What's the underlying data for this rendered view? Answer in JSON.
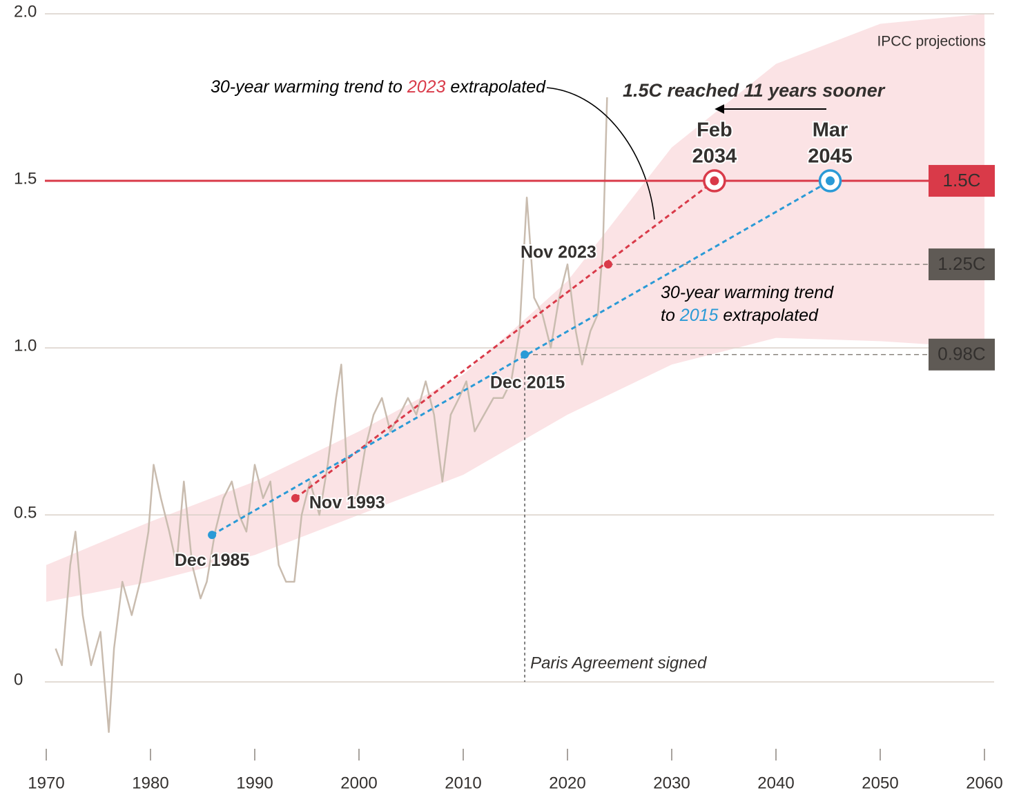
{
  "chart_data": {
    "type": "line",
    "xlim": [
      1970,
      2060
    ],
    "xticks": [
      1970,
      1980,
      1990,
      2000,
      2010,
      2020,
      2030,
      2040,
      2050,
      2060
    ],
    "ylim": [
      -0.2,
      2.0
    ],
    "yticks": [
      0,
      0.5,
      {
        "value": 1,
        "label": "1.0"
      },
      1.5,
      {
        "value": 2,
        "label": "2.0"
      }
    ],
    "grid": true,
    "band": {
      "label": "IPCC projections",
      "color": "#fbe3e5",
      "x": [
        1970,
        1980,
        1990,
        2000,
        2010,
        2020,
        2030,
        2040,
        2050,
        2060
      ],
      "upper": [
        0.35,
        0.48,
        0.6,
        0.75,
        0.92,
        1.2,
        1.6,
        1.85,
        1.97,
        2.0
      ],
      "lower": [
        0.24,
        0.3,
        0.38,
        0.5,
        0.62,
        0.8,
        0.95,
        1.03,
        1.02,
        1.0
      ]
    },
    "series": [
      {
        "color": "#c9bcaf",
        "x": [
          1970.9,
          1971.5,
          1972.3,
          1972.8,
          1973.5,
          1974.3,
          1975.2,
          1976.0,
          1976.5,
          1977.3,
          1978.2,
          1979.0,
          1979.8,
          1980.3,
          1981.0,
          1981.8,
          1982.5,
          1983.2,
          1984.0,
          1984.8,
          1985.4,
          1986.2,
          1987.0,
          1987.8,
          1988.5,
          1989.2,
          1990.0,
          1990.8,
          1991.5,
          1992.3,
          1993.0,
          1993.8,
          1994.5,
          1995.3,
          1996.2,
          1997.0,
          1997.8,
          1998.3,
          1999.0,
          1999.8,
          2000.6,
          2001.4,
          2002.2,
          2003.0,
          2003.9,
          2004.7,
          2005.5,
          2006.4,
          2007.2,
          2008.0,
          2008.8,
          2009.6,
          2010.3,
          2011.1,
          2012.0,
          2012.9,
          2013.8,
          2014.6,
          2015.4,
          2016.1,
          2016.8,
          2017.6,
          2018.4,
          2019.2,
          2020.0,
          2020.8,
          2021.4,
          2022.2,
          2022.9,
          2023.4,
          2023.8
        ],
        "values": [
          0.1,
          0.05,
          0.35,
          0.45,
          0.2,
          0.05,
          0.15,
          -0.15,
          0.1,
          0.3,
          0.2,
          0.3,
          0.45,
          0.65,
          0.55,
          0.45,
          0.35,
          0.6,
          0.35,
          0.25,
          0.3,
          0.45,
          0.55,
          0.6,
          0.5,
          0.45,
          0.65,
          0.55,
          0.6,
          0.35,
          0.3,
          0.3,
          0.5,
          0.6,
          0.5,
          0.65,
          0.85,
          0.95,
          0.55,
          0.55,
          0.7,
          0.8,
          0.85,
          0.75,
          0.8,
          0.85,
          0.8,
          0.9,
          0.8,
          0.6,
          0.8,
          0.85,
          0.9,
          0.75,
          0.8,
          0.85,
          0.85,
          0.9,
          1.05,
          1.45,
          1.15,
          1.1,
          1.0,
          1.15,
          1.25,
          1.05,
          0.95,
          1.05,
          1.1,
          1.3,
          1.75
        ]
      }
    ],
    "trends": [
      {
        "color": "#d93a49",
        "points": [
          {
            "x": 1993.9,
            "y": 0.55,
            "label_lines": [
              "Nov 1993"
            ]
          },
          {
            "x": 2023.9,
            "y": 1.25,
            "label_lines": [
              "Nov 2023"
            ]
          },
          {
            "x": 2034.1,
            "y": 1.5,
            "label_lines": [
              "Feb",
              "2034"
            ]
          }
        ],
        "note": [
          [
            "30-year warming trend to ",
            "2023",
            " extrapolated"
          ]
        ]
      },
      {
        "color": "#2a9ad6",
        "points": [
          {
            "x": 1985.9,
            "y": 0.44,
            "label_lines": [
              "Dec 1985"
            ]
          },
          {
            "x": 2015.9,
            "y": 0.98,
            "label_lines": [
              "Dec 2015"
            ]
          },
          {
            "x": 2045.2,
            "y": 1.5,
            "label_lines": [
              "Mar",
              "2045"
            ]
          }
        ],
        "note": [
          [
            "30-year warming trend"
          ],
          [
            "to ",
            "2015",
            " extrapolated"
          ]
        ]
      }
    ],
    "thresholds": [
      {
        "value": 1.5,
        "label": "1.5C",
        "color": "#d93a49",
        "from_x": 1970
      },
      {
        "value": 1.25,
        "label": "1.25C",
        "color": "#5f5a55",
        "from_x": 2023.9
      },
      {
        "value": 0.98,
        "label": "0.98C",
        "color": "#5f5a55",
        "from_x": 2015.9
      }
    ],
    "callout": "1.5C reached 11 years sooner",
    "event": {
      "x": 2015.9,
      "label": "Paris Agreement signed"
    }
  }
}
